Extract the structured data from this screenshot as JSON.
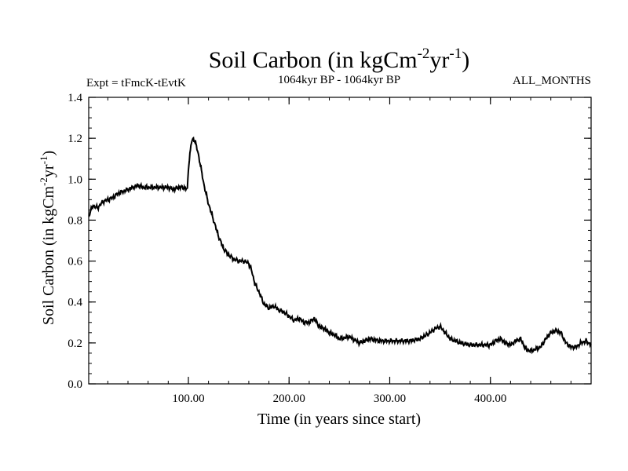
{
  "chart_data": {
    "type": "line",
    "title_main": "Soil Carbon (in kgCm",
    "title_sup1": "-2",
    "title_mid": "yr",
    "title_sup2": "-1",
    "title_end": ")",
    "subtitle_left": "Expt = tFmcK-tEvtK",
    "subtitle_center": "1064kyr BP - 1064kyr BP",
    "subtitle_right": "ALL_MONTHS",
    "xlabel": "Time (in years since start)",
    "ylabel_main": "Soil Carbon (in kgCm",
    "ylabel_sup1": "-2",
    "ylabel_mid": "yr",
    "ylabel_sup2": "-1",
    "ylabel_end": ")",
    "xlim": [
      1,
      500
    ],
    "ylim": [
      0.0,
      1.4
    ],
    "x_ticks": [
      {
        "value": 100,
        "label": "100.00"
      },
      {
        "value": 200,
        "label": "200.00"
      },
      {
        "value": 300,
        "label": "300.00"
      },
      {
        "value": 400,
        "label": "400.00"
      }
    ],
    "y_ticks": [
      {
        "value": 0.0,
        "label": "0.0"
      },
      {
        "value": 0.2,
        "label": "0.2"
      },
      {
        "value": 0.4,
        "label": "0.4"
      },
      {
        "value": 0.6,
        "label": "0.6"
      },
      {
        "value": 0.8,
        "label": "0.8"
      },
      {
        "value": 1.0,
        "label": "1.0"
      },
      {
        "value": 1.2,
        "label": "1.2"
      },
      {
        "value": 1.4,
        "label": "1.4"
      }
    ],
    "series": [
      {
        "name": "Soil Carbon",
        "color": "#000000",
        "x": [
          1,
          5,
          10,
          15,
          20,
          25,
          30,
          35,
          40,
          45,
          50,
          55,
          60,
          65,
          70,
          75,
          80,
          85,
          90,
          95,
          99,
          100,
          101,
          103,
          105,
          107,
          110,
          113,
          116,
          120,
          125,
          130,
          135,
          140,
          145,
          150,
          155,
          160,
          163,
          166,
          170,
          175,
          180,
          185,
          190,
          195,
          200,
          205,
          210,
          215,
          220,
          225,
          230,
          235,
          240,
          245,
          250,
          260,
          270,
          280,
          290,
          300,
          310,
          320,
          330,
          340,
          345,
          350,
          355,
          360,
          370,
          380,
          390,
          400,
          405,
          410,
          415,
          420,
          425,
          430,
          435,
          440,
          445,
          450,
          455,
          460,
          465,
          470,
          475,
          480,
          485,
          490,
          495,
          500
        ],
        "values": [
          0.82,
          0.87,
          0.86,
          0.89,
          0.9,
          0.91,
          0.93,
          0.94,
          0.95,
          0.96,
          0.97,
          0.96,
          0.96,
          0.96,
          0.96,
          0.96,
          0.96,
          0.95,
          0.96,
          0.96,
          0.95,
          1.05,
          1.1,
          1.18,
          1.2,
          1.18,
          1.12,
          1.04,
          0.96,
          0.88,
          0.8,
          0.72,
          0.66,
          0.63,
          0.61,
          0.6,
          0.6,
          0.59,
          0.55,
          0.49,
          0.45,
          0.39,
          0.37,
          0.38,
          0.36,
          0.35,
          0.33,
          0.31,
          0.32,
          0.3,
          0.3,
          0.32,
          0.28,
          0.27,
          0.25,
          0.24,
          0.22,
          0.23,
          0.2,
          0.22,
          0.21,
          0.21,
          0.21,
          0.21,
          0.22,
          0.25,
          0.27,
          0.28,
          0.25,
          0.22,
          0.2,
          0.19,
          0.19,
          0.19,
          0.21,
          0.22,
          0.2,
          0.19,
          0.21,
          0.22,
          0.17,
          0.16,
          0.17,
          0.18,
          0.22,
          0.25,
          0.26,
          0.25,
          0.2,
          0.18,
          0.18,
          0.2,
          0.21,
          0.19
        ]
      }
    ]
  }
}
